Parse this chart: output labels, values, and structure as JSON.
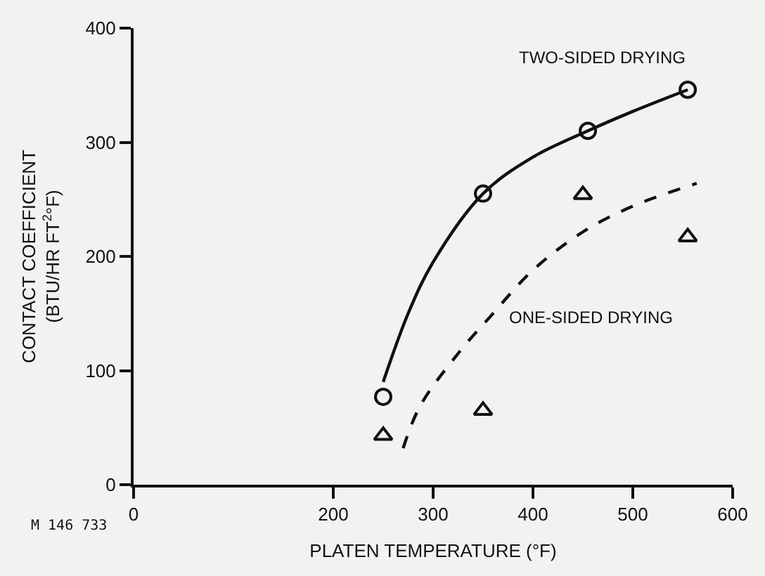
{
  "chart_data": {
    "type": "scatter",
    "xlabel": "PLATEN TEMPERATURE (°F)",
    "ylabel": "CONTACT COEFFICIENT\n(BTU/HR FT$^{2}$°F)",
    "xlim": [
      0,
      600
    ],
    "xticks": [
      0,
      200,
      300,
      400,
      500,
      600
    ],
    "ylim": [
      0,
      400
    ],
    "yticks": [
      0,
      100,
      200,
      300,
      400
    ],
    "grid": false,
    "legend": false,
    "series": [
      {
        "color": "#111111",
        "marker": "circle",
        "x": [
          250,
          350,
          455,
          555
        ],
        "values": [
          77,
          255,
          310,
          346
        ]
      },
      {
        "color": "#111111",
        "marker": "triangle",
        "x": [
          250,
          350,
          450,
          555
        ],
        "values": [
          43,
          65,
          254,
          217
        ]
      },
      {
        "type": "line",
        "name": "TWO-SIDED DRYING",
        "color": "#111111",
        "marker": "none",
        "line_style": "solid",
        "x": [
          250,
          275,
          300,
          350,
          400,
          455,
          500,
          555
        ],
        "values": [
          90,
          150,
          195,
          255,
          287,
          310,
          327,
          346
        ]
      },
      {
        "type": "line",
        "name": "ONE-SIDED DRYING",
        "color": "#111111",
        "marker": "none",
        "line_style": "dashed",
        "x": [
          270,
          287,
          326,
          357,
          400,
          451,
          500,
          564
        ],
        "values": [
          32,
          69,
          116,
          147,
          188,
          222,
          244,
          264
        ]
      }
    ],
    "annotations": [
      "M 146 733"
    ]
  }
}
